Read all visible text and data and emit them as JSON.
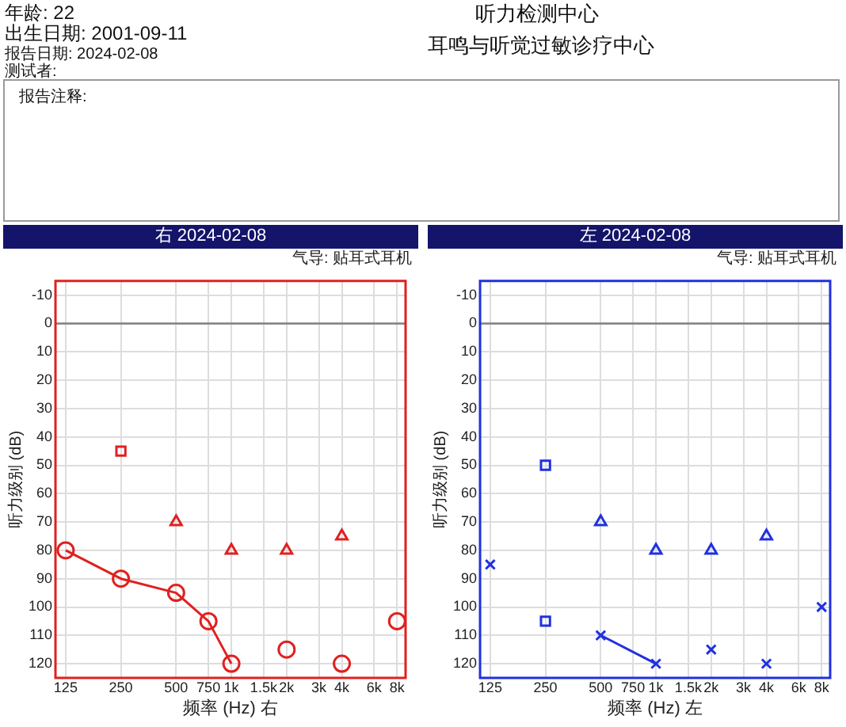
{
  "chart_data": [
    {
      "type": "other",
      "annotations": [
        "年龄: 22",
        "出生日期: 2001-09-11",
        "报告日期: 2024-02-08",
        "测试者:",
        "听力检测中心",
        "耳鸣与听觉过敏诊疗中心",
        "报告注释:"
      ]
    },
    {
      "type": "scatter",
      "title": "右 2024-02-08",
      "subtitle": "气导: 贴耳式耳机",
      "xlabel": "频率 (Hz) 右",
      "ylabel": "听力级别 (dB)",
      "log": "x",
      "xlim": [
        110,
        8900
      ],
      "xticks": [
        125,
        250,
        500,
        750,
        {
          "value": 1000,
          "label": "1k"
        },
        {
          "value": 1500,
          "label": "1.5k"
        },
        {
          "value": 2000,
          "label": "2k"
        },
        {
          "value": 3000,
          "label": "3k"
        },
        {
          "value": 4000,
          "label": "4k"
        },
        {
          "value": 6000,
          "label": "6k"
        },
        {
          "value": 8000,
          "label": "8k"
        }
      ],
      "ylim": [
        125,
        -15
      ],
      "yticks": [
        -10,
        0,
        10,
        20,
        30,
        40,
        50,
        60,
        70,
        80,
        90,
        100,
        110,
        120
      ],
      "grid": true,
      "legend": false,
      "ref_lines": [
        {
          "axis": "y",
          "value": 0,
          "color": "#808080"
        }
      ],
      "series": [
        {
          "type": "line",
          "color": "#e02020",
          "marker": "circle",
          "x": [
            125,
            250,
            500,
            750,
            1000
          ],
          "values": [
            80,
            90,
            95,
            105,
            120
          ]
        },
        {
          "type": "scatter",
          "color": "#e02020",
          "marker": "circle",
          "x": [
            2000,
            4000,
            8000
          ],
          "values": [
            115,
            120,
            105
          ]
        },
        {
          "type": "scatter",
          "color": "#e02020",
          "marker": "triangle",
          "x": [
            500,
            1000,
            2000,
            4000
          ],
          "values": [
            70,
            80,
            80,
            75
          ]
        },
        {
          "type": "scatter",
          "color": "#e02020",
          "marker": "square",
          "x": [
            250
          ],
          "values": [
            45
          ]
        }
      ]
    },
    {
      "type": "scatter",
      "title": "左 2024-02-08",
      "subtitle": "气导: 贴耳式耳机",
      "xlabel": "频率 (Hz) 左",
      "ylabel": "听力级别 (dB)",
      "log": "x",
      "xlim": [
        110,
        8900
      ],
      "xticks": [
        125,
        250,
        500,
        750,
        {
          "value": 1000,
          "label": "1k"
        },
        {
          "value": 1500,
          "label": "1.5k"
        },
        {
          "value": 2000,
          "label": "2k"
        },
        {
          "value": 3000,
          "label": "3k"
        },
        {
          "value": 4000,
          "label": "4k"
        },
        {
          "value": 6000,
          "label": "6k"
        },
        {
          "value": 8000,
          "label": "8k"
        }
      ],
      "ylim": [
        125,
        -15
      ],
      "yticks": [
        -10,
        0,
        10,
        20,
        30,
        40,
        50,
        60,
        70,
        80,
        90,
        100,
        110,
        120
      ],
      "grid": true,
      "legend": false,
      "ref_lines": [
        {
          "axis": "y",
          "value": 0,
          "color": "#808080"
        }
      ],
      "series": [
        {
          "type": "line",
          "color": "#2030e0",
          "marker": "cross",
          "x": [
            500,
            1000
          ],
          "values": [
            110,
            120
          ]
        },
        {
          "type": "scatter",
          "color": "#2030e0",
          "marker": "cross",
          "x": [
            125,
            2000,
            4000,
            8000
          ],
          "values": [
            85,
            115,
            120,
            100
          ]
        },
        {
          "type": "scatter",
          "color": "#2030e0",
          "marker": "square",
          "x": [
            250
          ],
          "values": [
            105
          ]
        },
        {
          "type": "scatter",
          "color": "#2030e0",
          "marker": "triangle",
          "x": [
            500,
            1000,
            2000,
            4000
          ],
          "values": [
            70,
            80,
            80,
            75
          ]
        },
        {
          "type": "scatter",
          "color": "#2030e0",
          "marker": "square",
          "x": [
            250
          ],
          "values": [
            50
          ]
        }
      ]
    }
  ]
}
